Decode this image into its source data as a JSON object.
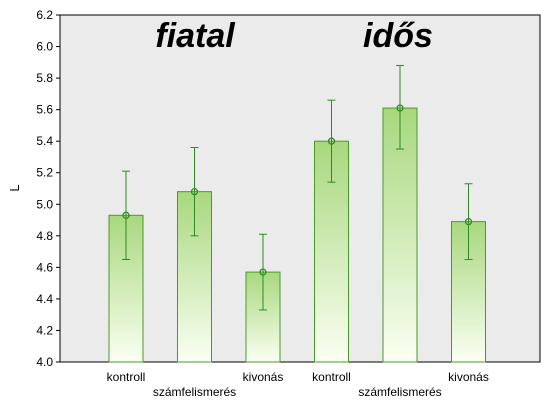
{
  "chart_data": {
    "type": "bar",
    "ylabel": "L",
    "ylim": [
      4.0,
      6.2
    ],
    "yticks": [
      "4.0",
      "4.2",
      "4.4",
      "4.6",
      "4.8",
      "5.0",
      "5.2",
      "5.4",
      "5.6",
      "5.8",
      "6.0",
      "6.2"
    ],
    "grid": false,
    "groups": [
      {
        "title": "fiatal",
        "bars": [
          {
            "label": "kontroll",
            "value": 4.93,
            "err_low": 4.65,
            "err_high": 5.21
          },
          {
            "label": "számfelismerés",
            "value": 5.08,
            "err_low": 4.8,
            "err_high": 5.36
          },
          {
            "label": "kivonás",
            "value": 4.57,
            "err_low": 4.33,
            "err_high": 4.81
          }
        ]
      },
      {
        "title": "idős",
        "bars": [
          {
            "label": "kontroll",
            "value": 5.4,
            "err_low": 5.14,
            "err_high": 5.66
          },
          {
            "label": "számfelismerés",
            "value": 5.61,
            "err_low": 5.35,
            "err_high": 5.88
          },
          {
            "label": "kivonás",
            "value": 4.89,
            "err_low": 4.65,
            "err_high": 5.13
          }
        ]
      }
    ],
    "colors": {
      "plot_bg": "#ebebeb",
      "bar_top": "#a8d87e",
      "bar_bottom": "#fafff2",
      "bar_stroke": "#4a9a2a",
      "error_bar": "#2e8b22",
      "marker": "#2e8b22"
    }
  }
}
